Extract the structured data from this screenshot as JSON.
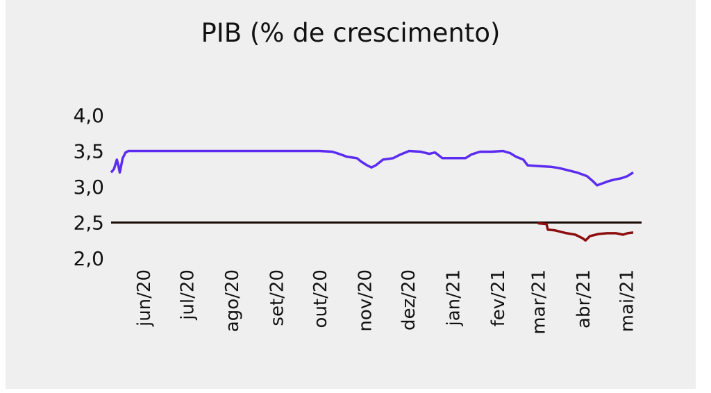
{
  "chart_data": {
    "type": "line",
    "title": "PIB (% de crescimento)",
    "xlabel": "",
    "ylabel": "",
    "ylim": [
      2.0,
      4.0
    ],
    "yticks": [
      "4,0",
      "3,5",
      "3,0",
      "2,5",
      "2,0"
    ],
    "ytick_values": [
      4.0,
      3.5,
      3.0,
      2.5,
      2.0
    ],
    "categories": [
      "jun/20",
      "jul/20",
      "ago/20",
      "set/20",
      "out/20",
      "nov/20",
      "dez/20",
      "jan/21",
      "fev/21",
      "mar/21",
      "abr/21",
      "mai/21"
    ],
    "reference_line": {
      "value": 2.5,
      "color": "#1a0a05"
    },
    "series": [
      {
        "color": "#5b2cf0",
        "points": [
          [
            "2020-05-10",
            3.2
          ],
          [
            "2020-05-12",
            3.25
          ],
          [
            "2020-05-14",
            3.38
          ],
          [
            "2020-05-15",
            3.3
          ],
          [
            "2020-05-16",
            3.2
          ],
          [
            "2020-05-18",
            3.4
          ],
          [
            "2020-05-20",
            3.48
          ],
          [
            "2020-05-22",
            3.5
          ],
          [
            "2020-06-15",
            3.5
          ],
          [
            "2020-07-15",
            3.5
          ],
          [
            "2020-08-15",
            3.5
          ],
          [
            "2020-09-15",
            3.5
          ],
          [
            "2020-10-01",
            3.5
          ],
          [
            "2020-10-10",
            3.49
          ],
          [
            "2020-10-16",
            3.45
          ],
          [
            "2020-10-20",
            3.42
          ],
          [
            "2020-10-27",
            3.4
          ],
          [
            "2020-10-30",
            3.35
          ],
          [
            "2020-11-03",
            3.3
          ],
          [
            "2020-11-06",
            3.27
          ],
          [
            "2020-11-09",
            3.3
          ],
          [
            "2020-11-14",
            3.38
          ],
          [
            "2020-11-21",
            3.4
          ],
          [
            "2020-11-26",
            3.45
          ],
          [
            "2020-12-02",
            3.5
          ],
          [
            "2020-12-10",
            3.49
          ],
          [
            "2020-12-16",
            3.46
          ],
          [
            "2020-12-20",
            3.48
          ],
          [
            "2020-12-25",
            3.4
          ],
          [
            "2021-01-10",
            3.4
          ],
          [
            "2021-01-14",
            3.45
          ],
          [
            "2021-01-20",
            3.49
          ],
          [
            "2021-01-28",
            3.49
          ],
          [
            "2021-02-05",
            3.5
          ],
          [
            "2021-02-10",
            3.47
          ],
          [
            "2021-02-14",
            3.42
          ],
          [
            "2021-02-19",
            3.38
          ],
          [
            "2021-02-22",
            3.3
          ],
          [
            "2021-03-01",
            3.29
          ],
          [
            "2021-03-10",
            3.28
          ],
          [
            "2021-03-16",
            3.26
          ],
          [
            "2021-03-22",
            3.23
          ],
          [
            "2021-03-28",
            3.2
          ],
          [
            "2021-04-04",
            3.15
          ],
          [
            "2021-04-08",
            3.08
          ],
          [
            "2021-04-11",
            3.02
          ],
          [
            "2021-04-15",
            3.05
          ],
          [
            "2021-04-19",
            3.08
          ],
          [
            "2021-04-23",
            3.1
          ],
          [
            "2021-04-28",
            3.12
          ],
          [
            "2021-05-02",
            3.15
          ],
          [
            "2021-05-06",
            3.2
          ]
        ]
      },
      {
        "color": "#8c0e0e",
        "points": [
          [
            "2021-03-01",
            2.49
          ],
          [
            "2021-03-07",
            2.48
          ],
          [
            "2021-03-08",
            2.4
          ],
          [
            "2021-03-13",
            2.39
          ],
          [
            "2021-03-17",
            2.37
          ],
          [
            "2021-03-21",
            2.35
          ],
          [
            "2021-03-27",
            2.33
          ],
          [
            "2021-04-01",
            2.28
          ],
          [
            "2021-04-03",
            2.25
          ],
          [
            "2021-04-06",
            2.31
          ],
          [
            "2021-04-12",
            2.34
          ],
          [
            "2021-04-18",
            2.35
          ],
          [
            "2021-04-24",
            2.35
          ],
          [
            "2021-04-29",
            2.33
          ],
          [
            "2021-05-02",
            2.35
          ],
          [
            "2021-05-06",
            2.36
          ]
        ]
      }
    ]
  }
}
